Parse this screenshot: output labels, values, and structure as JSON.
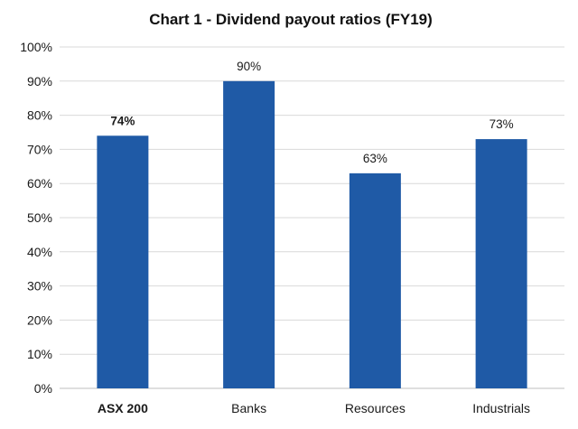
{
  "chart_data": {
    "type": "bar",
    "title": "Chart 1 - Dividend payout ratios (FY19)",
    "xlabel": "",
    "ylabel": "",
    "categories": [
      "ASX 200",
      "Banks",
      "Resources",
      "Industrials"
    ],
    "values": [
      74,
      90,
      63,
      73
    ],
    "data_labels": [
      "74%",
      "90%",
      "63%",
      "73%"
    ],
    "emphasized_category": "ASX 200",
    "ylim": [
      0,
      100
    ],
    "y_ticks": [
      0,
      10,
      20,
      30,
      40,
      50,
      60,
      70,
      80,
      90,
      100
    ],
    "y_tick_labels": [
      "0%",
      "10%",
      "20%",
      "30%",
      "40%",
      "50%",
      "60%",
      "70%",
      "80%",
      "90%",
      "100%"
    ],
    "grid": true,
    "legend": "none",
    "bar_color": "#1f5aa6"
  }
}
